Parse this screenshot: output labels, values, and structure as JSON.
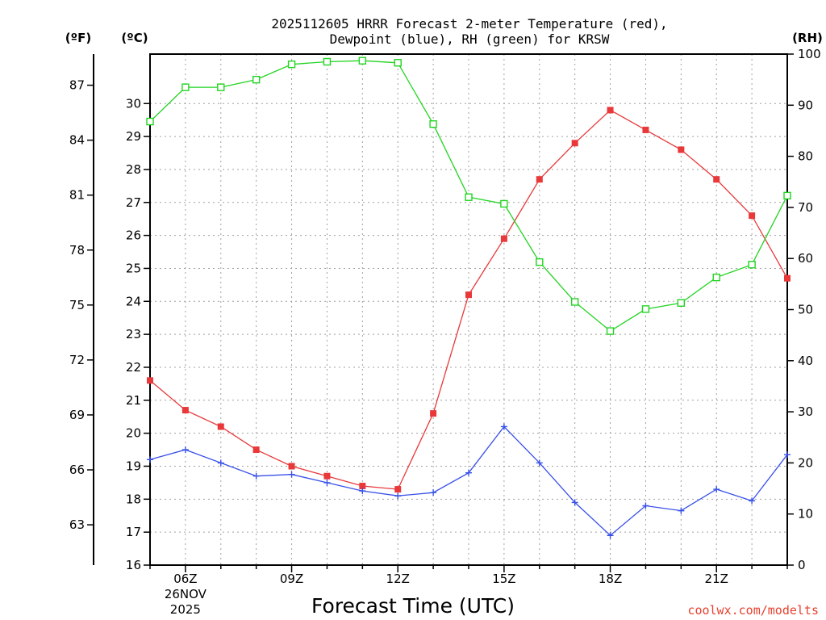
{
  "chart_data": {
    "type": "line",
    "title_line1": "2025112605 HRRR Forecast 2-meter Temperature (red),",
    "title_line2": "Dewpoint (blue), RH (green) for KRSW",
    "xlabel": "Forecast Time (UTC)",
    "credit": "coolwx.com/modelts",
    "unit_labels": {
      "fahrenheit": "(ºF)",
      "celsius": "(ºC)",
      "rh": "(RH)"
    },
    "x_hours": [
      5,
      6,
      7,
      8,
      9,
      10,
      11,
      12,
      13,
      14,
      15,
      16,
      17,
      18,
      19,
      20,
      21,
      22,
      23
    ],
    "x_ticks": [
      {
        "hour": 6,
        "label": "06Z",
        "date": "26NOV",
        "year": "2025"
      },
      {
        "hour": 9,
        "label": "09Z"
      },
      {
        "hour": 12,
        "label": "12Z"
      },
      {
        "hour": 15,
        "label": "15Z"
      },
      {
        "hour": 18,
        "label": "18Z"
      },
      {
        "hour": 21,
        "label": "21Z"
      }
    ],
    "xlim": [
      5,
      23
    ],
    "celsius_axis": {
      "ylim": [
        16,
        31.5
      ],
      "ticks": [
        "16",
        "17",
        "18",
        "19",
        "20",
        "21",
        "22",
        "23",
        "24",
        "25",
        "26",
        "27",
        "28",
        "29",
        "30"
      ]
    },
    "fahrenheit_axis": {
      "ylim": [
        60.8,
        88.7
      ],
      "ticks": [
        "63",
        "66",
        "69",
        "72",
        "75",
        "78",
        "81",
        "84",
        "87"
      ]
    },
    "rh_axis": {
      "ylim": [
        0,
        100
      ],
      "ticks": [
        "0",
        "10",
        "20",
        "30",
        "40",
        "50",
        "60",
        "70",
        "80",
        "90",
        "100"
      ]
    },
    "series": [
      {
        "name": "Temperature",
        "color": "#e8383a",
        "axis": "celsius",
        "marker": "filled-square",
        "values": [
          21.6,
          20.7,
          20.2,
          19.5,
          19.0,
          18.7,
          18.4,
          18.3,
          20.6,
          24.2,
          25.9,
          27.7,
          28.8,
          29.8,
          29.2,
          28.6,
          27.7,
          26.6,
          24.7
        ]
      },
      {
        "name": "Dewpoint",
        "color": "#3850e8",
        "axis": "celsius",
        "marker": "plus",
        "values": [
          19.2,
          19.5,
          19.1,
          18.7,
          18.75,
          18.5,
          18.25,
          18.1,
          18.2,
          18.8,
          20.2,
          19.1,
          17.9,
          16.9,
          17.8,
          17.65,
          18.3,
          17.95,
          19.35
        ]
      },
      {
        "name": "RH",
        "color": "#22d422",
        "axis": "rh",
        "marker": "open-square",
        "values": [
          86.8,
          93.5,
          93.5,
          95.0,
          98.0,
          98.5,
          98.7,
          98.3,
          86.3,
          72.0,
          70.7,
          59.3,
          51.5,
          45.8,
          50.1,
          51.3,
          56.3,
          58.8,
          72.3
        ]
      }
    ]
  }
}
